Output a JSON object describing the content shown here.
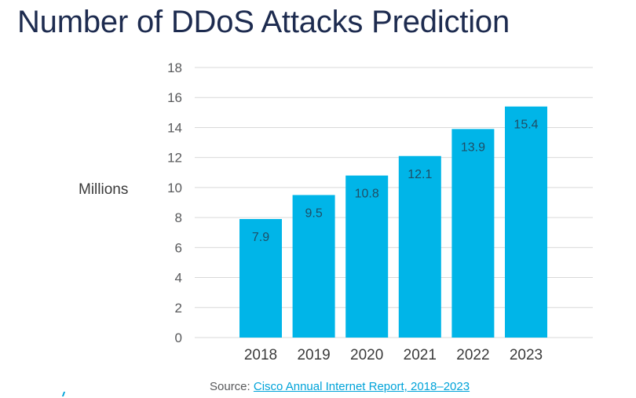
{
  "title": "Number of DDoS Attacks Prediction",
  "chart_data": {
    "type": "bar",
    "title": "Number of DDoS Attacks Prediction",
    "xlabel": "",
    "ylabel": "Millions",
    "categories": [
      "2018",
      "2019",
      "2020",
      "2021",
      "2022",
      "2023"
    ],
    "values": [
      7.9,
      9.5,
      10.8,
      12.1,
      13.9,
      15.4
    ],
    "data_labels": [
      "7.9",
      "9.5",
      "10.8",
      "12.1",
      "13.9",
      "15.4"
    ],
    "ylim": [
      0,
      18
    ],
    "yticks": [
      0,
      2,
      4,
      6,
      8,
      10,
      12,
      14,
      16,
      18
    ],
    "grid": true,
    "bar_color": "#00b5e8"
  },
  "source": {
    "prefix": "Source: ",
    "link_text": "Cisco Annual Internet Report, 2018–2023"
  }
}
